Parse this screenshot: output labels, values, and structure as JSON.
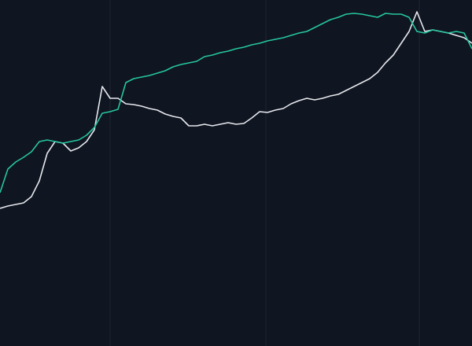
{
  "chart_data": {
    "type": "line",
    "x": [
      0,
      10,
      20,
      30,
      40,
      50,
      60,
      70,
      80,
      90,
      100,
      110,
      120,
      130,
      140,
      150,
      160,
      170,
      180,
      190,
      200,
      210,
      220,
      230,
      240,
      250,
      260,
      270,
      280,
      290,
      300,
      310,
      320,
      330,
      340,
      350,
      360,
      370,
      380,
      390,
      400,
      410,
      420,
      430,
      440,
      450,
      460,
      470,
      480,
      490,
      500,
      510,
      520,
      530,
      540,
      550,
      560,
      570,
      580,
      590,
      600
    ],
    "xlim": [
      0,
      600
    ],
    "ylim": [
      0,
      440
    ],
    "xticks": [
      140,
      338,
      533
    ],
    "grid": true,
    "series": [
      {
        "color": "#e6e8ec",
        "values": [
          175,
          178,
          180,
          182,
          190,
          210,
          245,
          260,
          258,
          248,
          252,
          260,
          275,
          330,
          315,
          315,
          308,
          307,
          305,
          302,
          300,
          295,
          292,
          290,
          280,
          280,
          282,
          280,
          282,
          284,
          282,
          283,
          290,
          298,
          297,
          300,
          302,
          308,
          312,
          315,
          313,
          315,
          318,
          320,
          325,
          330,
          335,
          340,
          348,
          360,
          370,
          385,
          400,
          425,
          400,
          402,
          400,
          398,
          395,
          392,
          385
        ]
      },
      {
        "color": "#26c6a0",
        "values": [
          195,
          225,
          234,
          240,
          247,
          260,
          262,
          260,
          258,
          260,
          262,
          268,
          278,
          296,
          298,
          301,
          335,
          340,
          342,
          344,
          347,
          350,
          355,
          358,
          360,
          362,
          368,
          370,
          373,
          375,
          378,
          380,
          383,
          385,
          388,
          390,
          392,
          395,
          398,
          400,
          405,
          410,
          415,
          418,
          422,
          423,
          422,
          420,
          418,
          423,
          422,
          422,
          418,
          400,
          398,
          402,
          400,
          398,
          400,
          398,
          378
        ]
      }
    ]
  }
}
